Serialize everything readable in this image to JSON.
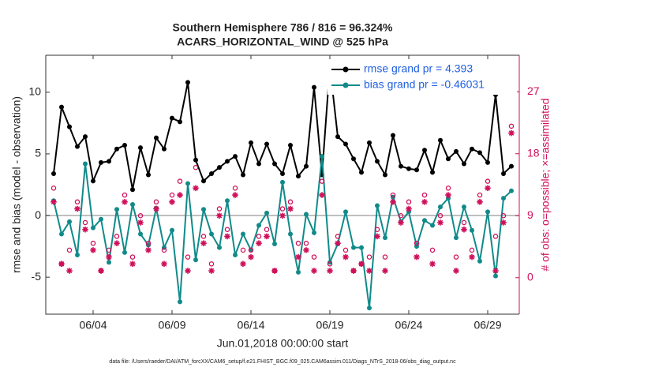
{
  "chart_data": {
    "type": "line",
    "title": "Southern Hemisphere 786 / 816 = 96.324%",
    "subtitle": "ACARS_HORIZONTAL_WIND @ 525 hPa",
    "x_label": "Jun.01,2018 00:00:00 start",
    "y_label": "rmse and bias (model - observation)",
    "y2_label": "# of obs: o=possible; ×=assimilated",
    "footnote": "data file: /Users/raeder/DAI/ATM_forcXX/CAM6_setup/f.e21.FHIST_BGC.f09_025.CAM6assim.011/Diags_NTrS_2018-06/obs_diag_output.nc",
    "xlim": [
      1,
      31
    ],
    "xticks": [
      {
        "value": 4,
        "label": "06/04"
      },
      {
        "value": 9,
        "label": "06/09"
      },
      {
        "value": 14,
        "label": "06/14"
      },
      {
        "value": 19,
        "label": "06/19"
      },
      {
        "value": 24,
        "label": "06/24"
      },
      {
        "value": 29,
        "label": "06/29"
      }
    ],
    "ylim": [
      -8,
      13
    ],
    "yticks": [
      -5,
      0,
      5,
      10
    ],
    "y2lim": [
      -5.3,
      32.3
    ],
    "y2ticks": [
      0,
      9,
      18,
      27
    ],
    "x": [
      1.5,
      2,
      2.5,
      3,
      3.5,
      4,
      4.5,
      5,
      5.5,
      6,
      6.5,
      7,
      7.5,
      8,
      8.5,
      9,
      9.5,
      10,
      10.5,
      11,
      11.5,
      12,
      12.5,
      13,
      13.5,
      14,
      14.5,
      15,
      15.5,
      16,
      16.5,
      17,
      17.5,
      18,
      18.5,
      19,
      19.5,
      20,
      20.5,
      21,
      21.5,
      22,
      22.5,
      23,
      23.5,
      24,
      24.5,
      25,
      25.5,
      26,
      26.5,
      27,
      27.5,
      28,
      28.5,
      29,
      29.5,
      30,
      30.5
    ],
    "series": [
      {
        "name": "rmse grand pr = 4.393",
        "color": "#000000",
        "marker": "dot",
        "values": [
          3.4,
          8.8,
          7.2,
          5.6,
          6.4,
          2.8,
          4.3,
          4.4,
          5.4,
          5.7,
          2.1,
          5.5,
          3.3,
          6.3,
          5.4,
          7.9,
          7.6,
          10.8,
          4.5,
          2.8,
          3.4,
          3.9,
          4.4,
          4.8,
          3.3,
          5.9,
          4.2,
          5.8,
          4.2,
          3.4,
          5.7,
          3.2,
          4,
          10.4,
          3.3,
          12.1,
          6.4,
          5.8,
          4.6,
          3.5,
          5.9,
          4.4,
          3.3,
          6.5,
          4,
          3.8,
          3.7,
          5.3,
          3.5,
          6.1,
          4.6,
          5.2,
          4.2,
          5.4,
          5.1,
          4.3,
          9.8,
          3.4,
          4.0
        ]
      },
      {
        "name": "bias grand pr = -0.46031",
        "color": "#118a8a",
        "marker": "dot",
        "values": [
          1.2,
          -1.5,
          -0.5,
          -3.2,
          4.2,
          -1,
          -0.3,
          -3.8,
          0.5,
          -3,
          0.9,
          -1.5,
          -2.4,
          0.6,
          -2.6,
          -1.2,
          -7,
          2.6,
          -3.6,
          0.5,
          -1.5,
          -2.6,
          1.2,
          -3.2,
          -1.5,
          -2.8,
          -0.8,
          0.2,
          -2.3,
          2.7,
          -1.5,
          -4.6,
          0.1,
          -1.4,
          4.8,
          -3.8,
          -2.3,
          0.3,
          -2.6,
          -2.6,
          -7.5,
          0.8,
          -1.8,
          1.5,
          -0.5,
          0.3,
          -2.5,
          -0.4,
          -0.8,
          0.7,
          1.4,
          -1.8,
          0.7,
          -1.2,
          -3.7,
          0.3,
          -4.9,
          1.4,
          2.0
        ]
      },
      {
        "color": "#d0105a",
        "marker": "circle",
        "axis": "y2",
        "values": [
          13,
          2,
          4,
          11,
          8,
          5,
          1,
          4,
          6,
          12,
          3,
          9,
          5,
          11,
          4,
          12,
          14,
          3,
          16,
          6,
          2,
          10,
          7,
          13,
          4,
          4,
          6,
          7,
          1,
          10,
          11,
          5,
          5,
          3,
          14,
          2,
          6,
          4,
          1,
          2,
          3,
          7,
          3,
          12,
          9,
          11,
          5,
          12,
          4,
          9,
          13,
          3,
          8,
          4,
          12,
          14,
          6,
          9,
          22
        ]
      },
      {
        "color": "#d0105a",
        "marker": "asterisk",
        "axis": "y2",
        "values": [
          11,
          2,
          1,
          10,
          7,
          4,
          1,
          3,
          5,
          11,
          2,
          8,
          4,
          10,
          2,
          11,
          12,
          1,
          13,
          5,
          1,
          9,
          6,
          12,
          2,
          3,
          5,
          6,
          1,
          9,
          10,
          3,
          4,
          1,
          12,
          1,
          5,
          3,
          1,
          2,
          1,
          6,
          1,
          11,
          8,
          10,
          3,
          11,
          2,
          8,
          12,
          1,
          7,
          3,
          11,
          13,
          1,
          8,
          21
        ]
      }
    ],
    "legend_color": "#1f5fe0"
  }
}
